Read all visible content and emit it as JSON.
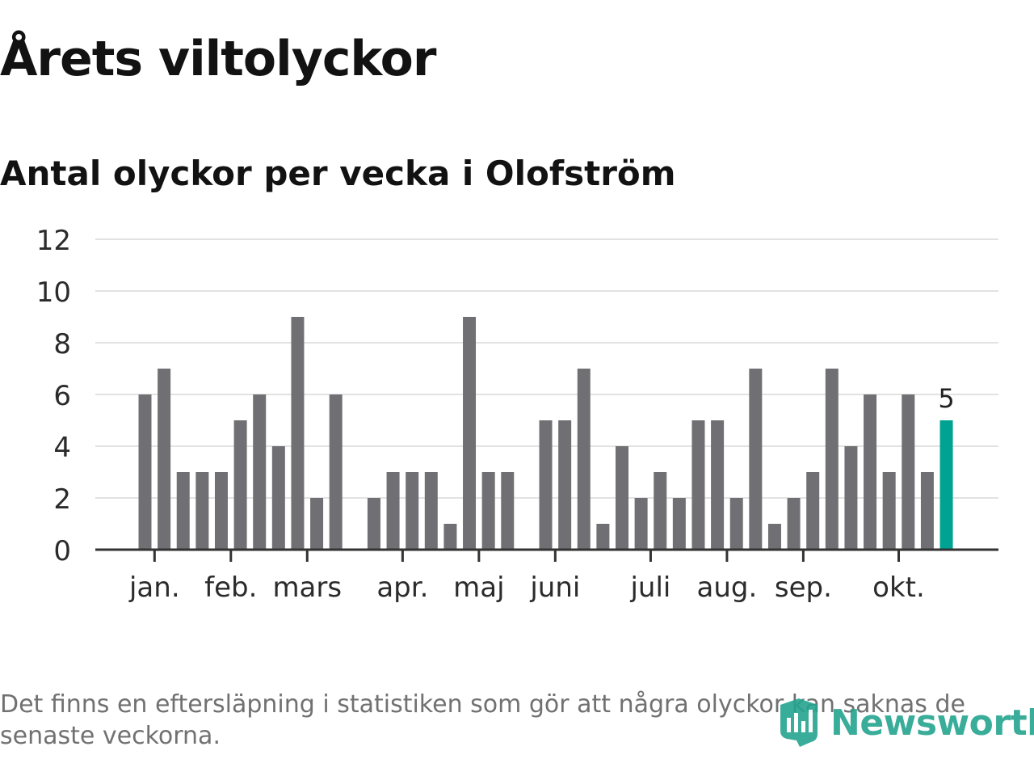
{
  "title": "Årets viltolyckor",
  "subtitle": "Antal olyckor per vecka i Olofström",
  "footnote": "Det finns en eftersläpning i statistiken som gör att några olyckor kan saknas de senaste veckorna.",
  "brand": {
    "name": "Newsworthy",
    "icon": "newsworthy-logo-icon"
  },
  "colors": {
    "bar": "#707074",
    "highlight": "#00a391",
    "grid": "#e2e2e2",
    "axis": "#333333",
    "text": "#2b2b2b"
  },
  "chart_data": {
    "type": "bar",
    "title": "Antal olyckor per vecka i Olofström",
    "xlabel": "",
    "ylabel": "",
    "ylim": [
      0,
      12
    ],
    "yticks": [
      "0",
      "2",
      "4",
      "6",
      "8",
      "10",
      "12"
    ],
    "grid": true,
    "weeks": [
      1,
      2,
      3,
      4,
      5,
      6,
      7,
      8,
      9,
      10,
      11,
      12,
      13,
      14,
      15,
      16,
      17,
      18,
      19,
      20,
      21,
      22,
      23,
      24,
      25,
      26,
      27,
      28,
      29,
      30,
      31,
      32,
      33,
      34,
      35,
      36,
      37,
      38,
      39,
      40,
      41,
      42,
      43
    ],
    "values": [
      6,
      7,
      3,
      3,
      3,
      5,
      6,
      4,
      9,
      2,
      6,
      0,
      2,
      3,
      3,
      3,
      1,
      9,
      3,
      3,
      0,
      5,
      5,
      7,
      1,
      4,
      2,
      3,
      2,
      5,
      5,
      2,
      7,
      1,
      2,
      3,
      7,
      4,
      6,
      3,
      6,
      3,
      5
    ],
    "month_labels": [
      {
        "label": "jan.",
        "week": 1.5
      },
      {
        "label": "feb.",
        "week": 5.5
      },
      {
        "label": "mars",
        "week": 9.5
      },
      {
        "label": "apr.",
        "week": 14.5
      },
      {
        "label": "maj",
        "week": 18.5
      },
      {
        "label": "juni",
        "week": 22.5
      },
      {
        "label": "juli",
        "week": 27.5
      },
      {
        "label": "aug.",
        "week": 31.5
      },
      {
        "label": "sep.",
        "week": 35.5
      },
      {
        "label": "okt.",
        "week": 40.5
      }
    ],
    "highlight": {
      "week": 43,
      "value": 5,
      "label": "5"
    }
  }
}
